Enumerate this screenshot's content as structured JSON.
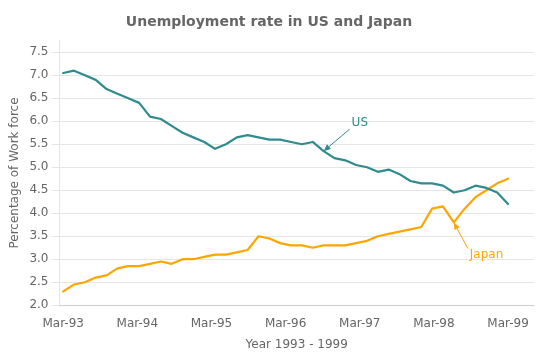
{
  "chart_data": {
    "type": "line",
    "title": "Unemployment rate in US and Japan",
    "xlabel": "Year 1993 - 1999",
    "ylabel": "Percentage of Work force",
    "x": [
      0,
      0.1463,
      0.2927,
      0.439,
      0.5854,
      0.7317,
      0.878,
      1.0244,
      1.1707,
      1.3171,
      1.4634,
      1.6098,
      1.7561,
      1.9024,
      2.0488,
      2.1951,
      2.3415,
      2.4878,
      2.6341,
      2.7805,
      2.9268,
      3.0732,
      3.2195,
      3.3659,
      3.5122,
      3.6585,
      3.8049,
      3.9512,
      4.0976,
      4.2439,
      4.3902,
      4.5366,
      4.6829,
      4.8293,
      4.9756,
      5.122,
      5.2683,
      5.4146,
      5.561,
      5.7073,
      5.8537,
      6
    ],
    "series": [
      {
        "name": "US",
        "color": "#2e8b8e",
        "values": [
          7.05,
          7.1,
          7.0,
          6.9,
          6.7,
          6.6,
          6.5,
          6.4,
          6.1,
          6.05,
          5.9,
          5.75,
          5.65,
          5.55,
          5.4,
          5.5,
          5.65,
          5.7,
          5.65,
          5.6,
          5.6,
          5.55,
          5.5,
          5.55,
          5.35,
          5.2,
          5.15,
          5.05,
          5.0,
          4.9,
          4.95,
          4.85,
          4.7,
          4.65,
          4.65,
          4.6,
          4.45,
          4.5,
          4.6,
          4.55,
          4.45,
          4.2
        ]
      },
      {
        "name": "Japan",
        "color": "#FFA500",
        "values": [
          2.3,
          2.45,
          2.5,
          2.6,
          2.65,
          2.8,
          2.85,
          2.85,
          2.9,
          2.95,
          2.9,
          3.0,
          3.0,
          3.05,
          3.1,
          3.1,
          3.15,
          3.2,
          3.5,
          3.45,
          3.35,
          3.3,
          3.3,
          3.25,
          3.3,
          3.3,
          3.3,
          3.35,
          3.4,
          3.5,
          3.55,
          3.6,
          3.65,
          3.7,
          4.1,
          4.15,
          3.8,
          4.1,
          4.35,
          4.5,
          4.65,
          4.75
        ]
      }
    ],
    "annotations": [
      {
        "text": "US",
        "x": 3.5122,
        "y": 5.35
      },
      {
        "text": "Japan",
        "x": 5.2683,
        "y": 3.8
      }
    ],
    "xlim": [
      -0.05,
      6.35
    ],
    "xticks": [
      {
        "value": 0,
        "label": "Mar-93"
      },
      {
        "value": 1,
        "label": "Mar-94"
      },
      {
        "value": 2,
        "label": "Mar-95"
      },
      {
        "value": 3,
        "label": "Mar-96"
      },
      {
        "value": 4,
        "label": "Mar-97"
      },
      {
        "value": 5,
        "label": "Mar-98"
      },
      {
        "value": 6,
        "label": "Mar-99"
      }
    ],
    "ylim": [
      2.0,
      7.75
    ],
    "yticks": [
      {
        "value": 2,
        "label": "2.0"
      },
      2.5,
      {
        "value": 3,
        "label": "3.0"
      },
      3.5,
      {
        "value": 4,
        "label": "4.0"
      },
      4.5,
      {
        "value": 5,
        "label": "5.0"
      },
      5.5,
      {
        "value": 6,
        "label": "6.0"
      },
      6.5,
      {
        "value": 7,
        "label": "7.0"
      },
      7.5
    ],
    "grid": "y"
  }
}
